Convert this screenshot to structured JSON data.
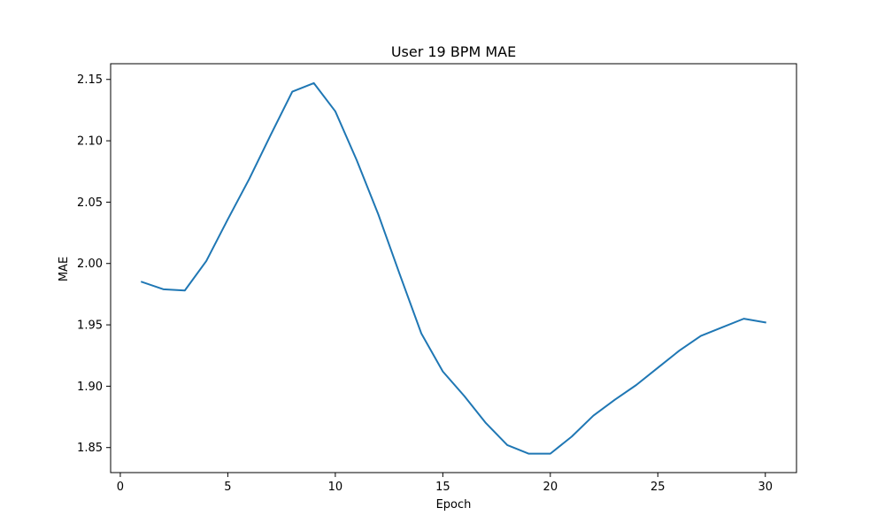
{
  "chart_data": {
    "type": "line",
    "title": "User 19 BPM MAE",
    "xlabel": "Epoch",
    "ylabel": "MAE",
    "xlim": [
      -0.45,
      31.45
    ],
    "ylim": [
      1.8296,
      2.1628
    ],
    "x_ticks": [
      0,
      5,
      10,
      15,
      20,
      25,
      30
    ],
    "x_tick_labels": [
      "0",
      "5",
      "10",
      "15",
      "20",
      "25",
      "30"
    ],
    "y_ticks": [
      1.85,
      1.9,
      1.95,
      2.0,
      2.05,
      2.1,
      2.15
    ],
    "y_tick_labels": [
      "1.85",
      "1.90",
      "1.95",
      "2.00",
      "2.05",
      "2.10",
      "2.15"
    ],
    "grid": false,
    "series": [
      {
        "color": "#1f77b4",
        "x": [
          1,
          2,
          3,
          4,
          5,
          6,
          7,
          8,
          9,
          10,
          11,
          12,
          13,
          14,
          15,
          16,
          17,
          18,
          19,
          20,
          21,
          22,
          23,
          24,
          25,
          26,
          27,
          28,
          29,
          30
        ],
        "y": [
          1.985,
          1.979,
          1.978,
          2.002,
          2.036,
          2.069,
          2.105,
          2.14,
          2.147,
          2.124,
          2.084,
          2.04,
          1.991,
          1.943,
          1.912,
          1.892,
          1.87,
          1.852,
          1.845,
          1.845,
          1.859,
          1.876,
          1.889,
          1.901,
          1.915,
          1.929,
          1.941,
          1.948,
          1.955,
          1.952
        ]
      }
    ]
  }
}
